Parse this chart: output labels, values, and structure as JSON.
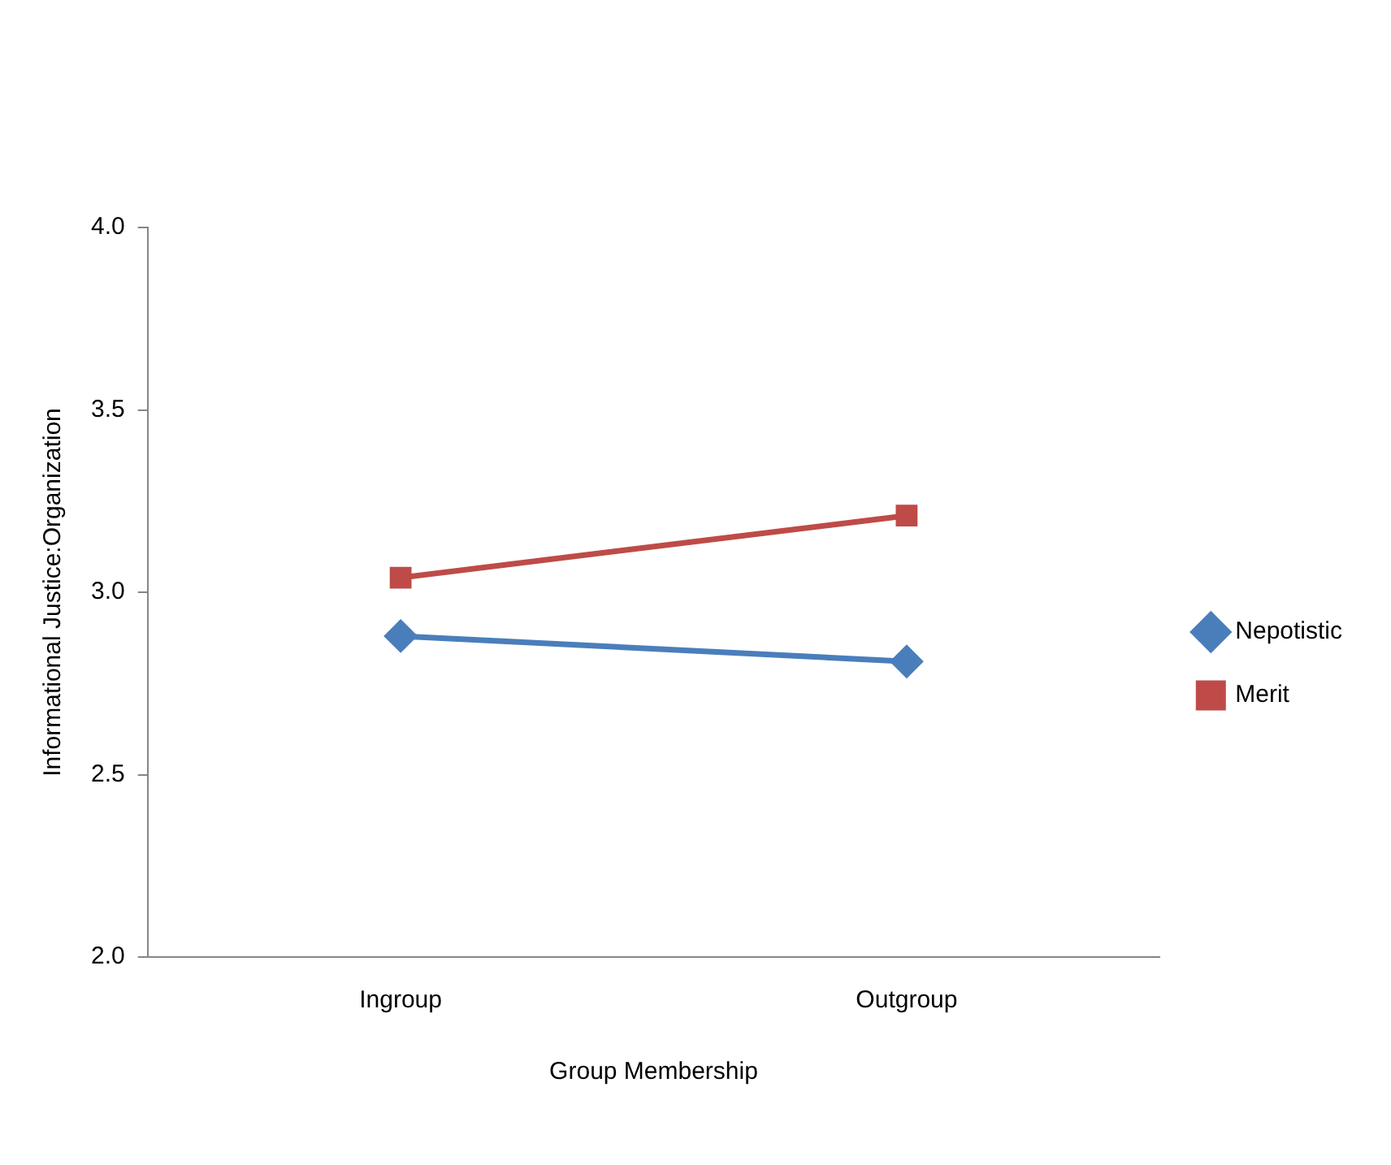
{
  "chart_data": {
    "type": "line",
    "xlabel": "Group Membership",
    "ylabel": "Informational Justice:Organization",
    "categories": [
      "Ingroup",
      "Outgroup"
    ],
    "series": [
      {
        "name": "Nepotistic",
        "color": "#4a7ebb",
        "values": [
          2.88,
          2.81
        ],
        "marker": "diamond"
      },
      {
        "name": "Merit",
        "color": "#be4b48",
        "values": [
          3.04,
          3.21
        ],
        "marker": "square"
      }
    ],
    "ylim": [
      2.0,
      4.0
    ],
    "yticks": [
      {
        "value": 2,
        "label": "2.0"
      },
      {
        "value": 2.5,
        "label": "2.5"
      },
      {
        "value": 3,
        "label": "3.0"
      },
      {
        "value": 3.5,
        "label": "3.5"
      },
      {
        "value": 4,
        "label": "4.0"
      }
    ],
    "grid": false,
    "legend": "right",
    "line_style": "solid"
  }
}
